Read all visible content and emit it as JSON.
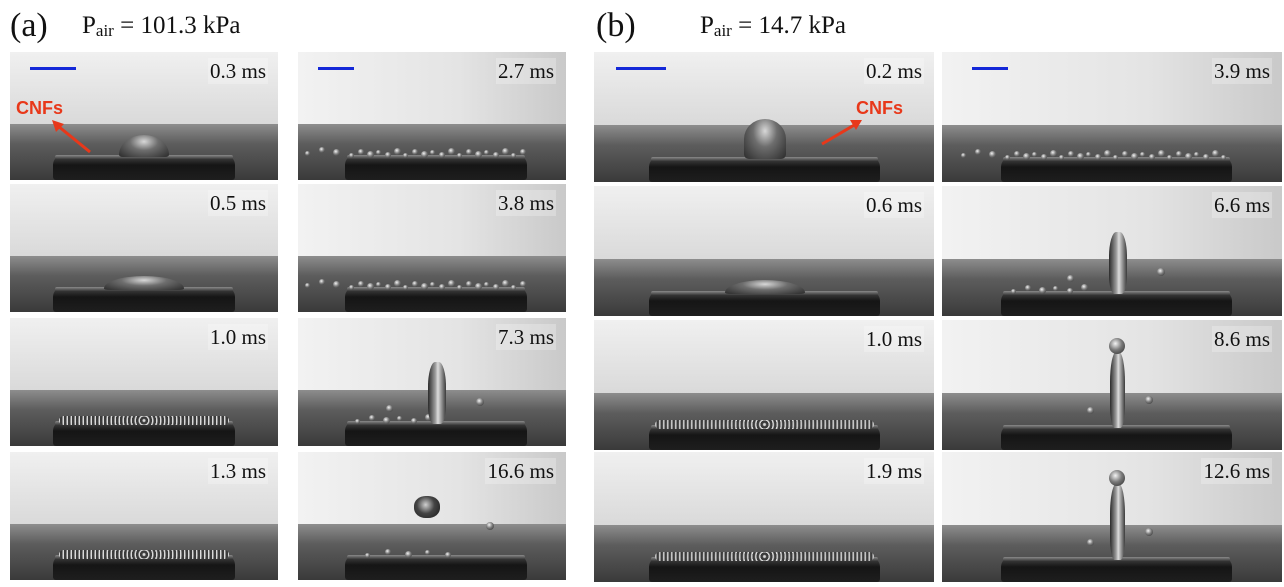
{
  "panels": [
    {
      "letter": "(a)",
      "pressure_label": "P",
      "pressure_sub": "air",
      "pressure_value": " = 101.3 kPa",
      "frames": [
        {
          "time": "0.3 ms",
          "state": "spread-drop",
          "annotation": "CNFs"
        },
        {
          "time": "2.7 ms",
          "state": "beads-row"
        },
        {
          "time": "0.5 ms",
          "state": "flat-drop"
        },
        {
          "time": "3.8 ms",
          "state": "beads-row"
        },
        {
          "time": "1.0 ms",
          "state": "ring"
        },
        {
          "time": "7.3 ms",
          "state": "jet-short"
        },
        {
          "time": "1.3 ms",
          "state": "ring"
        },
        {
          "time": "16.6 ms",
          "state": "detached-drop"
        }
      ]
    },
    {
      "letter": "(b)",
      "pressure_label": "P",
      "pressure_sub": "air",
      "pressure_value": " = 14.7 kPa",
      "frames": [
        {
          "time": "0.2 ms",
          "state": "round-drop",
          "annotation": "CNFs"
        },
        {
          "time": "3.9 ms",
          "state": "beads-row"
        },
        {
          "time": "0.6 ms",
          "state": "flat-drop"
        },
        {
          "time": "6.6 ms",
          "state": "jet-short"
        },
        {
          "time": "1.0 ms",
          "state": "ring"
        },
        {
          "time": "8.6 ms",
          "state": "jet-tall"
        },
        {
          "time": "1.9 ms",
          "state": "ring"
        },
        {
          "time": "12.6 ms",
          "state": "jet-tall"
        }
      ]
    }
  ],
  "colors": {
    "scale_bar": "#1428d8",
    "annotation": "#e8381a"
  }
}
